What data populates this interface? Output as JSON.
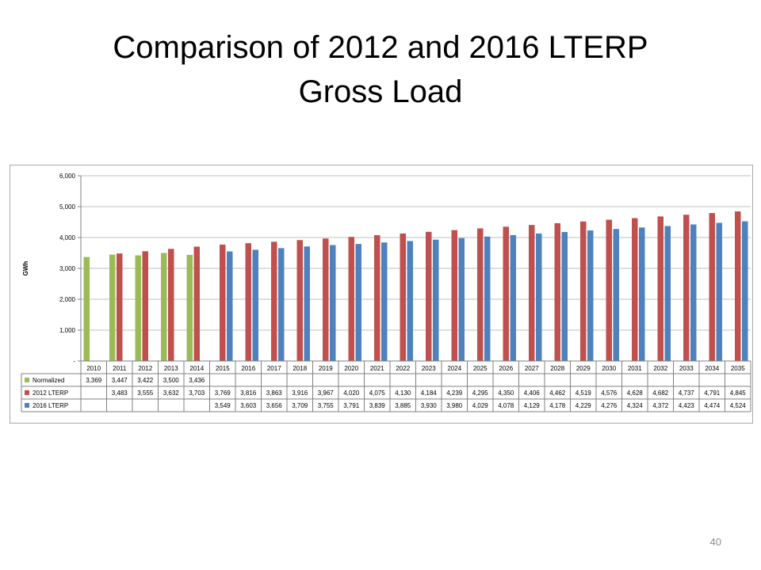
{
  "slide": {
    "title_line1": "Comparison of 2012 and 2016 LTERP",
    "title_line2": "Gross Load",
    "page_number": "40"
  },
  "chart_data": {
    "type": "bar",
    "title": "",
    "xlabel": "",
    "ylabel": "GWh",
    "ylim": [
      0,
      6000
    ],
    "yticks": [
      0,
      1000,
      2000,
      3000,
      4000,
      5000,
      6000
    ],
    "ytick_labels": [
      "-",
      "1,000",
      "2,000",
      "3,000",
      "4,000",
      "5,000",
      "6,000"
    ],
    "grid": true,
    "legend": "data-table",
    "categories": [
      "2010",
      "2011",
      "2012",
      "2013",
      "2014",
      "2015",
      "2016",
      "2017",
      "2018",
      "2019",
      "2020",
      "2021",
      "2022",
      "2023",
      "2024",
      "2025",
      "2026",
      "2027",
      "2028",
      "2029",
      "2030",
      "2031",
      "2032",
      "2033",
      "2034",
      "2035"
    ],
    "series": [
      {
        "name": "Normalized",
        "color": "#9bbb59",
        "values": [
          3369,
          3447,
          3422,
          3500,
          3436,
          null,
          null,
          null,
          null,
          null,
          null,
          null,
          null,
          null,
          null,
          null,
          null,
          null,
          null,
          null,
          null,
          null,
          null,
          null,
          null,
          null
        ],
        "labels": [
          "3,369",
          "3,447",
          "3,422",
          "3,500",
          "3,436",
          "",
          "",
          "",
          "",
          "",
          "",
          "",
          "",
          "",
          "",
          "",
          "",
          "",
          "",
          "",
          "",
          "",
          "",
          "",
          "",
          ""
        ]
      },
      {
        "name": "2012 LTERP",
        "color": "#c0504d",
        "values": [
          null,
          3483,
          3555,
          3632,
          3703,
          3769,
          3816,
          3863,
          3916,
          3967,
          4020,
          4075,
          4130,
          4184,
          4239,
          4295,
          4350,
          4406,
          4462,
          4519,
          4576,
          4628,
          4682,
          4737,
          4791,
          4845
        ],
        "labels": [
          "",
          "3,483",
          "3,555",
          "3,632",
          "3,703",
          "3,769",
          "3,816",
          "3,863",
          "3,916",
          "3,967",
          "4,020",
          "4,075",
          "4,130",
          "4,184",
          "4,239",
          "4,295",
          "4,350",
          "4,406",
          "4,462",
          "4,519",
          "4,576",
          "4,628",
          "4,682",
          "4,737",
          "4,791",
          "4,845"
        ]
      },
      {
        "name": "2016 LTERP",
        "color": "#4f81bd",
        "values": [
          null,
          null,
          null,
          null,
          null,
          3549,
          3603,
          3656,
          3709,
          3755,
          3791,
          3839,
          3885,
          3930,
          3980,
          4029,
          4078,
          4129,
          4178,
          4229,
          4276,
          4324,
          4372,
          4423,
          4474,
          4524
        ],
        "labels": [
          "",
          "",
          "",
          "",
          "",
          "3,549",
          "3,603",
          "3,656",
          "3,709",
          "3,755",
          "3,791",
          "3,839",
          "3,885",
          "3,930",
          "3,980",
          "4,029",
          "4,078",
          "4,129",
          "4,178",
          "4,229",
          "4,276",
          "4,324",
          "4,372",
          "4,423",
          "4,474",
          "4,524"
        ]
      }
    ]
  }
}
